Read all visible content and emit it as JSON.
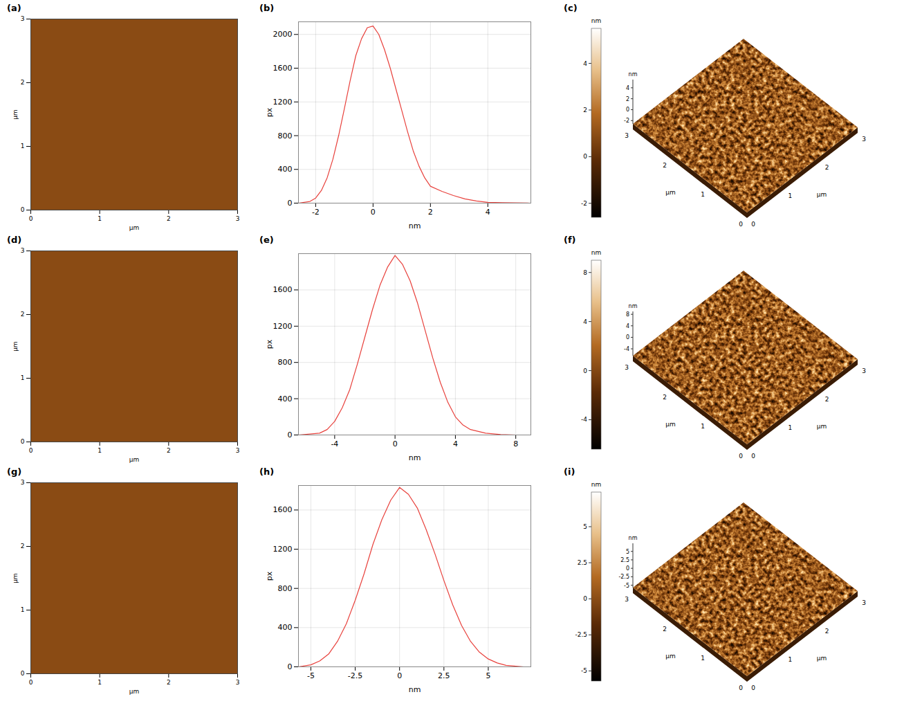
{
  "chart_data": [
    {
      "type": "image",
      "title": "(a)",
      "x_label": "µm",
      "y_label": "µm",
      "xlim": [
        0,
        3
      ],
      "ylim": [
        0,
        3
      ],
      "xticks": [
        0,
        1,
        2,
        3
      ],
      "yticks": [
        0,
        1,
        2,
        3
      ]
    },
    {
      "type": "line",
      "title": "(b)",
      "x_label": "nm",
      "y_label": "px",
      "color": "#e8413c",
      "grid": true,
      "x": [
        -2.6,
        -2.2,
        -2.0,
        -1.8,
        -1.6,
        -1.4,
        -1.2,
        -1.0,
        -0.8,
        -0.6,
        -0.4,
        -0.2,
        0,
        0.2,
        0.4,
        0.6,
        0.8,
        1.0,
        1.2,
        1.4,
        1.6,
        1.8,
        2.0,
        2.4,
        2.8,
        3.2,
        3.6,
        4.0,
        4.5,
        5.5
      ],
      "values": [
        0,
        20,
        60,
        150,
        300,
        520,
        800,
        1120,
        1450,
        1750,
        1950,
        2080,
        2100,
        2000,
        1820,
        1600,
        1350,
        1100,
        850,
        620,
        440,
        300,
        200,
        140,
        90,
        50,
        25,
        10,
        5,
        0
      ],
      "xlim": [
        -2.6,
        5.5
      ],
      "xticks": [
        -2,
        0,
        2,
        4
      ],
      "ylim": [
        0,
        2150
      ],
      "yticks": [
        0,
        400,
        800,
        1200,
        1600,
        2000
      ]
    },
    {
      "type": "surface3d",
      "title": "(c)",
      "x_label": "µm",
      "y_label": "µm",
      "z_label": "nm",
      "colorbar_label": "nm",
      "xlim": [
        0,
        3
      ],
      "ylim": [
        0,
        3
      ],
      "xticks": [
        0,
        1,
        2,
        3
      ],
      "yticks": [
        0,
        1,
        2,
        3
      ],
      "zlim": [
        -2.6,
        5.5
      ],
      "zticks": [
        -2,
        0,
        2,
        4
      ]
    },
    {
      "type": "image",
      "title": "(d)",
      "x_label": "µm",
      "y_label": "µm",
      "xlim": [
        0,
        3
      ],
      "ylim": [
        0,
        3
      ],
      "xticks": [
        0,
        1,
        2,
        3
      ],
      "yticks": [
        0,
        1,
        2,
        3
      ]
    },
    {
      "type": "line",
      "title": "(e)",
      "x_label": "nm",
      "y_label": "px",
      "color": "#e8413c",
      "grid": true,
      "x": [
        -6.4,
        -5,
        -4.5,
        -4,
        -3.5,
        -3,
        -2.5,
        -2,
        -1.5,
        -1,
        -0.5,
        0,
        0.5,
        1,
        1.5,
        2,
        2.5,
        3,
        3.5,
        4,
        4.5,
        5,
        6,
        7,
        8,
        9
      ],
      "values": [
        0,
        20,
        60,
        150,
        300,
        500,
        780,
        1080,
        1380,
        1650,
        1850,
        1980,
        1880,
        1700,
        1450,
        1150,
        850,
        580,
        360,
        200,
        110,
        60,
        20,
        5,
        0,
        0
      ],
      "xlim": [
        -6.4,
        9
      ],
      "xticks": [
        -4,
        0,
        4,
        8
      ],
      "ylim": [
        0,
        2000
      ],
      "yticks": [
        0,
        400,
        800,
        1200,
        1600
      ]
    },
    {
      "type": "surface3d",
      "title": "(f)",
      "x_label": "µm",
      "y_label": "µm",
      "z_label": "nm",
      "colorbar_label": "nm",
      "xlim": [
        0,
        3
      ],
      "ylim": [
        0,
        3
      ],
      "xticks": [
        0,
        1,
        2,
        3
      ],
      "yticks": [
        0,
        1,
        2,
        3
      ],
      "zlim": [
        -6.4,
        9
      ],
      "zticks": [
        -4,
        0,
        4,
        8
      ]
    },
    {
      "type": "image",
      "title": "(g)",
      "x_label": "µm",
      "y_label": "µm",
      "xlim": [
        0,
        3
      ],
      "ylim": [
        0,
        3
      ],
      "xticks": [
        0,
        1,
        2,
        3
      ],
      "yticks": [
        0,
        1,
        2,
        3
      ]
    },
    {
      "type": "line",
      "title": "(h)",
      "x_label": "nm",
      "y_label": "px",
      "color": "#e8413c",
      "grid": true,
      "x": [
        -5.7,
        -5,
        -4.5,
        -4,
        -3.5,
        -3,
        -2.5,
        -2,
        -1.5,
        -1,
        -0.5,
        0,
        0.5,
        1,
        1.5,
        2,
        2.5,
        3,
        3.5,
        4,
        4.5,
        5,
        5.5,
        6,
        7,
        7.4
      ],
      "values": [
        0,
        20,
        60,
        130,
        260,
        440,
        680,
        950,
        1250,
        1500,
        1700,
        1830,
        1760,
        1620,
        1400,
        1150,
        880,
        630,
        420,
        260,
        150,
        80,
        40,
        15,
        0,
        0
      ],
      "xlim": [
        -5.7,
        7.4
      ],
      "xticks": [
        -5,
        -2.5,
        0,
        2.5,
        5
      ],
      "ylim": [
        0,
        1850
      ],
      "yticks": [
        0,
        400,
        800,
        1200,
        1600
      ]
    },
    {
      "type": "surface3d",
      "title": "(i)",
      "x_label": "µm",
      "y_label": "µm",
      "z_label": "nm",
      "colorbar_label": "nm",
      "xlim": [
        0,
        3
      ],
      "ylim": [
        0,
        3
      ],
      "xticks": [
        0,
        1,
        2,
        3
      ],
      "yticks": [
        0,
        1,
        2,
        3
      ],
      "zlim": [
        -5.7,
        7.4
      ],
      "zticks": [
        -5,
        -2.5,
        0,
        2.5,
        5
      ]
    }
  ]
}
